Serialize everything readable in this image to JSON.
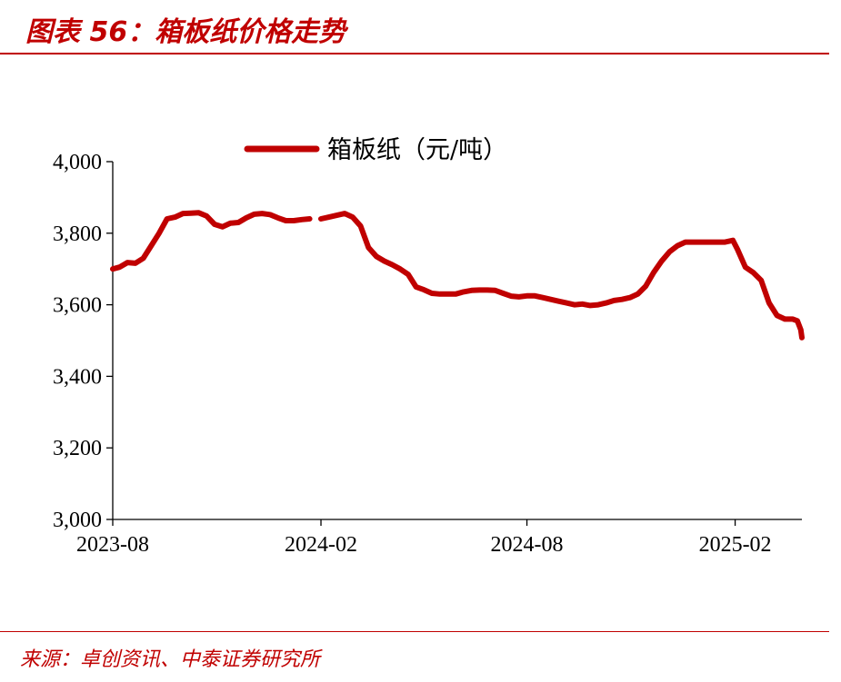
{
  "header": {
    "title": "图表 56：箱板纸价格走势"
  },
  "footer": {
    "source": "来源：卓创资讯、中泰证券研究所"
  },
  "colors": {
    "accent": "#c00000",
    "series": "#c00000",
    "axis": "#000000"
  },
  "chart_data": {
    "type": "line",
    "title": "",
    "xlabel": "",
    "ylabel": "",
    "ylim": [
      3000,
      4000
    ],
    "yticks": [
      3000,
      3200,
      3400,
      3600,
      3800,
      4000
    ],
    "ytick_labels": [
      "3,000",
      "3,200",
      "3,400",
      "3,600",
      "3,800",
      "4,000"
    ],
    "xticks": [
      "2023-08",
      "2024-02",
      "2024-08",
      "2025-02"
    ],
    "xlim": [
      "2023-08-01",
      "2025-04-01"
    ],
    "grid": false,
    "legend": "top-center",
    "series": [
      {
        "name": "箱板纸（元/吨）",
        "points": [
          [
            "2023-08-01",
            3700
          ],
          [
            "2023-08-07",
            3705
          ],
          [
            "2023-08-14",
            3718
          ],
          [
            "2023-08-21",
            3716
          ],
          [
            "2023-08-28",
            3730
          ],
          [
            "2023-09-04",
            3765
          ],
          [
            "2023-09-11",
            3800
          ],
          [
            "2023-09-18",
            3840
          ],
          [
            "2023-09-25",
            3845
          ],
          [
            "2023-10-02",
            3855
          ],
          [
            "2023-10-09",
            3856
          ],
          [
            "2023-10-16",
            3857
          ],
          [
            "2023-10-23",
            3848
          ],
          [
            "2023-10-30",
            3825
          ],
          [
            "2023-11-06",
            3818
          ],
          [
            "2023-11-13",
            3828
          ],
          [
            "2023-11-20",
            3830
          ],
          [
            "2023-11-27",
            3843
          ],
          [
            "2023-12-04",
            3853
          ],
          [
            "2023-12-11",
            3855
          ],
          [
            "2023-12-18",
            3852
          ],
          [
            "2023-12-25",
            3843
          ],
          [
            "2024-01-01",
            3835
          ],
          [
            "2024-01-08",
            3835
          ],
          [
            "2024-01-15",
            3838
          ],
          [
            "2024-01-22",
            3840
          ],
          null,
          [
            "2024-02-01",
            3840
          ],
          [
            "2024-02-08",
            3845
          ],
          [
            "2024-02-15",
            3850
          ],
          [
            "2024-02-22",
            3855
          ],
          [
            "2024-02-29",
            3845
          ],
          [
            "2024-03-07",
            3820
          ],
          [
            "2024-03-14",
            3760
          ],
          [
            "2024-03-21",
            3735
          ],
          [
            "2024-03-28",
            3722
          ],
          [
            "2024-04-04",
            3712
          ],
          [
            "2024-04-11",
            3700
          ],
          [
            "2024-04-18",
            3685
          ],
          [
            "2024-04-25",
            3650
          ],
          [
            "2024-05-02",
            3642
          ],
          [
            "2024-05-09",
            3632
          ],
          [
            "2024-05-16",
            3630
          ],
          [
            "2024-05-23",
            3630
          ],
          [
            "2024-05-30",
            3630
          ],
          [
            "2024-06-06",
            3636
          ],
          [
            "2024-06-13",
            3640
          ],
          [
            "2024-06-20",
            3641
          ],
          [
            "2024-06-27",
            3641
          ],
          [
            "2024-07-04",
            3640
          ],
          [
            "2024-07-11",
            3632
          ],
          [
            "2024-07-18",
            3624
          ],
          [
            "2024-07-25",
            3622
          ],
          [
            "2024-08-01",
            3625
          ],
          [
            "2024-08-08",
            3625
          ],
          [
            "2024-08-15",
            3620
          ],
          [
            "2024-08-22",
            3615
          ],
          [
            "2024-08-29",
            3610
          ],
          [
            "2024-09-05",
            3605
          ],
          [
            "2024-09-12",
            3600
          ],
          [
            "2024-09-19",
            3602
          ],
          [
            "2024-09-26",
            3598
          ],
          [
            "2024-10-03",
            3600
          ],
          [
            "2024-10-10",
            3605
          ],
          [
            "2024-10-17",
            3612
          ],
          [
            "2024-10-24",
            3615
          ],
          [
            "2024-10-31",
            3620
          ],
          [
            "2024-11-07",
            3630
          ],
          [
            "2024-11-14",
            3652
          ],
          [
            "2024-11-21",
            3690
          ],
          [
            "2024-11-28",
            3722
          ],
          [
            "2024-12-05",
            3748
          ],
          [
            "2024-12-12",
            3765
          ],
          [
            "2024-12-19",
            3775
          ],
          [
            "2024-12-26",
            3775
          ],
          [
            "2025-01-02",
            3775
          ],
          [
            "2025-01-09",
            3775
          ],
          [
            "2025-01-16",
            3775
          ],
          [
            "2025-01-23",
            3775
          ],
          [
            "2025-01-30",
            3780
          ],
          [
            "2025-02-03",
            3755
          ],
          [
            "2025-02-10",
            3705
          ],
          [
            "2025-02-17",
            3690
          ],
          [
            "2025-02-24",
            3668
          ],
          [
            "2025-03-03",
            3605
          ],
          [
            "2025-03-10",
            3570
          ],
          [
            "2025-03-17",
            3560
          ],
          [
            "2025-03-24",
            3560
          ],
          [
            "2025-03-28",
            3555
          ],
          [
            "2025-03-31",
            3530
          ],
          [
            "2025-04-01",
            3508
          ]
        ]
      }
    ]
  }
}
